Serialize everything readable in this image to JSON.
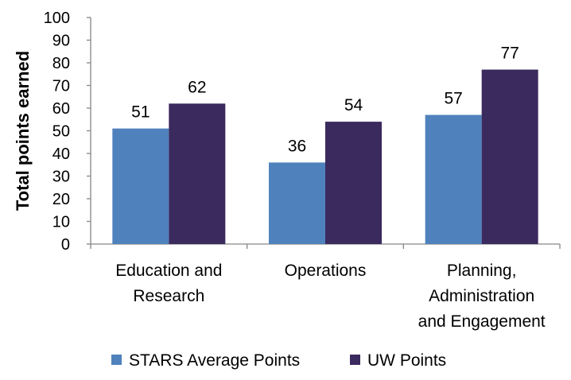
{
  "chart_data": {
    "type": "bar",
    "categories": [
      [
        "Education and",
        "Research"
      ],
      [
        "Operations"
      ],
      [
        "Planning,",
        "Administration",
        "and Engagement"
      ]
    ],
    "series": [
      {
        "name": "STARS Average Points",
        "values": [
          51,
          36,
          57
        ],
        "color": "#4f81bd"
      },
      {
        "name": "UW Points",
        "values": [
          62,
          54,
          77
        ],
        "color": "#3b2a5e"
      }
    ],
    "xlabel": "",
    "ylabel": "Total points earned",
    "ylim": [
      0,
      100
    ],
    "yticks": [
      0,
      10,
      20,
      30,
      40,
      50,
      60,
      70,
      80,
      90,
      100
    ],
    "grid": false,
    "legend": "bottom",
    "axis_color": "#868686"
  }
}
